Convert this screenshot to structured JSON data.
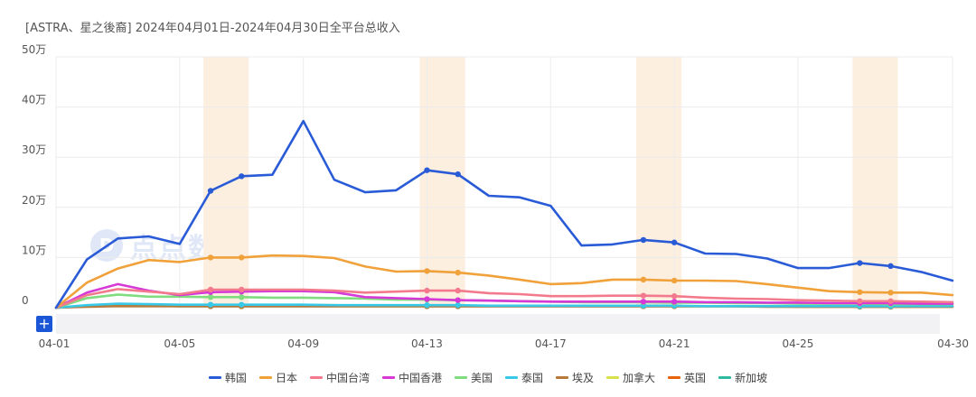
{
  "title": "[ASTRA、星之後裔]  2024年04月01日-2024年04月30日全平台总收入",
  "watermark_text": "点点数据",
  "plus_label": "+",
  "colors": {
    "grid": "#ececec",
    "highlight": "#fdefe0",
    "axis_text": "#555555",
    "scrollbar": "#f2f2f4"
  },
  "chart_data": {
    "type": "line",
    "x": [
      "04-01",
      "04-02",
      "04-03",
      "04-04",
      "04-05",
      "04-06",
      "04-07",
      "04-08",
      "04-09",
      "04-10",
      "04-11",
      "04-12",
      "04-13",
      "04-14",
      "04-15",
      "04-16",
      "04-17",
      "04-18",
      "04-19",
      "04-20",
      "04-21",
      "04-22",
      "04-23",
      "04-24",
      "04-25",
      "04-26",
      "04-27",
      "04-28",
      "04-29",
      "04-30"
    ],
    "x_tick_labels": [
      "04-01",
      "04-05",
      "04-09",
      "04-13",
      "04-17",
      "04-21",
      "04-25",
      "04-30"
    ],
    "y_tick_labels": [
      "0",
      "10万",
      "20万",
      "30万",
      "40万",
      "50万"
    ],
    "y_tick_values": [
      0,
      100000,
      200000,
      300000,
      400000,
      500000
    ],
    "ylim": [
      0,
      500000
    ],
    "grid": true,
    "legend_position": "bottom",
    "highlight_ranges": [
      [
        "04-06",
        "04-07"
      ],
      [
        "04-13",
        "04-14"
      ],
      [
        "04-20",
        "04-21"
      ],
      [
        "04-27",
        "04-28"
      ]
    ],
    "marker_days": [
      "04-06",
      "04-07",
      "04-13",
      "04-14",
      "04-20",
      "04-21",
      "04-27",
      "04-28"
    ],
    "series": [
      {
        "name": "韩国",
        "color": "#2a5bd7",
        "values": [
          0,
          96000,
          138000,
          142000,
          127000,
          233000,
          262000,
          265000,
          372000,
          255000,
          230000,
          234000,
          274000,
          266000,
          223000,
          220000,
          203000,
          124000,
          126000,
          135000,
          130000,
          108000,
          107000,
          98000,
          79000,
          79000,
          89000,
          83000,
          71000,
          54000
        ]
      },
      {
        "name": "日本",
        "color": "#f0a13a",
        "values": [
          0,
          50000,
          78000,
          95000,
          91000,
          100000,
          100000,
          104000,
          103000,
          99000,
          82000,
          72000,
          73000,
          70000,
          64000,
          56000,
          47000,
          49000,
          56000,
          56000,
          54000,
          54000,
          53000,
          47000,
          40000,
          33000,
          31000,
          30000,
          30000,
          25000
        ]
      },
      {
        "name": "中国台湾",
        "color": "#f37a8c",
        "values": [
          0,
          25000,
          37000,
          32000,
          27000,
          36000,
          36000,
          36000,
          36000,
          34000,
          30000,
          32000,
          34000,
          34000,
          29000,
          27000,
          23000,
          23000,
          24000,
          24000,
          23000,
          20000,
          18000,
          17000,
          15000,
          14000,
          13000,
          13000,
          12000,
          11000
        ]
      },
      {
        "name": "中国香港",
        "color": "#d639d6",
        "values": [
          0,
          30000,
          47000,
          34000,
          25000,
          31000,
          32000,
          33000,
          33000,
          31000,
          21000,
          19000,
          17000,
          15000,
          14000,
          13000,
          12000,
          12000,
          12000,
          12000,
          12000,
          11000,
          11000,
          10000,
          10000,
          9000,
          9000,
          9000,
          8000,
          8000
        ]
      },
      {
        "name": "美国",
        "color": "#7fdc7f",
        "values": [
          0,
          19000,
          26000,
          22000,
          22000,
          21000,
          21000,
          20000,
          20000,
          19000,
          18000,
          16000,
          16000,
          15000,
          14000,
          13000,
          12000,
          11000,
          11000,
          11000,
          10000,
          10000,
          9000,
          9000,
          8000,
          8000,
          8000,
          7000,
          7000,
          7000
        ]
      },
      {
        "name": "泰国",
        "color": "#38c8e8",
        "values": [
          0,
          5000,
          8000,
          7000,
          6000,
          6000,
          6000,
          6000,
          6000,
          5000,
          5000,
          5000,
          5000,
          5000,
          4000,
          4000,
          4000,
          4000,
          4000,
          4000,
          4000,
          3000,
          3000,
          3000,
          3000,
          3000,
          3000,
          3000,
          3000,
          3000
        ]
      },
      {
        "name": "埃及",
        "color": "#b87a3a",
        "values": [
          0,
          2000,
          3000,
          3000,
          3000,
          3000,
          3000,
          3000,
          3000,
          3000,
          3000,
          3000,
          3000,
          3000,
          3000,
          3000,
          3000,
          3000,
          3000,
          3000,
          3000,
          3000,
          3000,
          2000,
          2000,
          2000,
          2000,
          2000,
          2000,
          2000
        ]
      },
      {
        "name": "加拿大",
        "color": "#d8e04a",
        "values": [
          0,
          4000,
          6000,
          5000,
          5000,
          5000,
          5000,
          5000,
          5000,
          5000,
          4000,
          4000,
          4000,
          4000,
          4000,
          4000,
          4000,
          4000,
          4000,
          4000,
          3000,
          3000,
          3000,
          3000,
          3000,
          3000,
          3000,
          3000,
          3000,
          3000
        ]
      },
      {
        "name": "英国",
        "color": "#e8620e",
        "values": [
          0,
          3000,
          4000,
          4000,
          3000,
          3000,
          3000,
          3000,
          3000,
          3000,
          3000,
          3000,
          3000,
          3000,
          3000,
          3000,
          3000,
          3000,
          3000,
          3000,
          3000,
          3000,
          3000,
          3000,
          2000,
          2000,
          2000,
          2000,
          2000,
          2000
        ]
      },
      {
        "name": "新加坡",
        "color": "#2fb8a0",
        "values": [
          0,
          3000,
          4000,
          4000,
          3000,
          3000,
          3000,
          3000,
          3000,
          3000,
          3000,
          3000,
          3000,
          3000,
          3000,
          3000,
          3000,
          3000,
          3000,
          3000,
          3000,
          3000,
          3000,
          3000,
          3000,
          3000,
          3000,
          3000,
          3000,
          3000
        ]
      }
    ]
  }
}
